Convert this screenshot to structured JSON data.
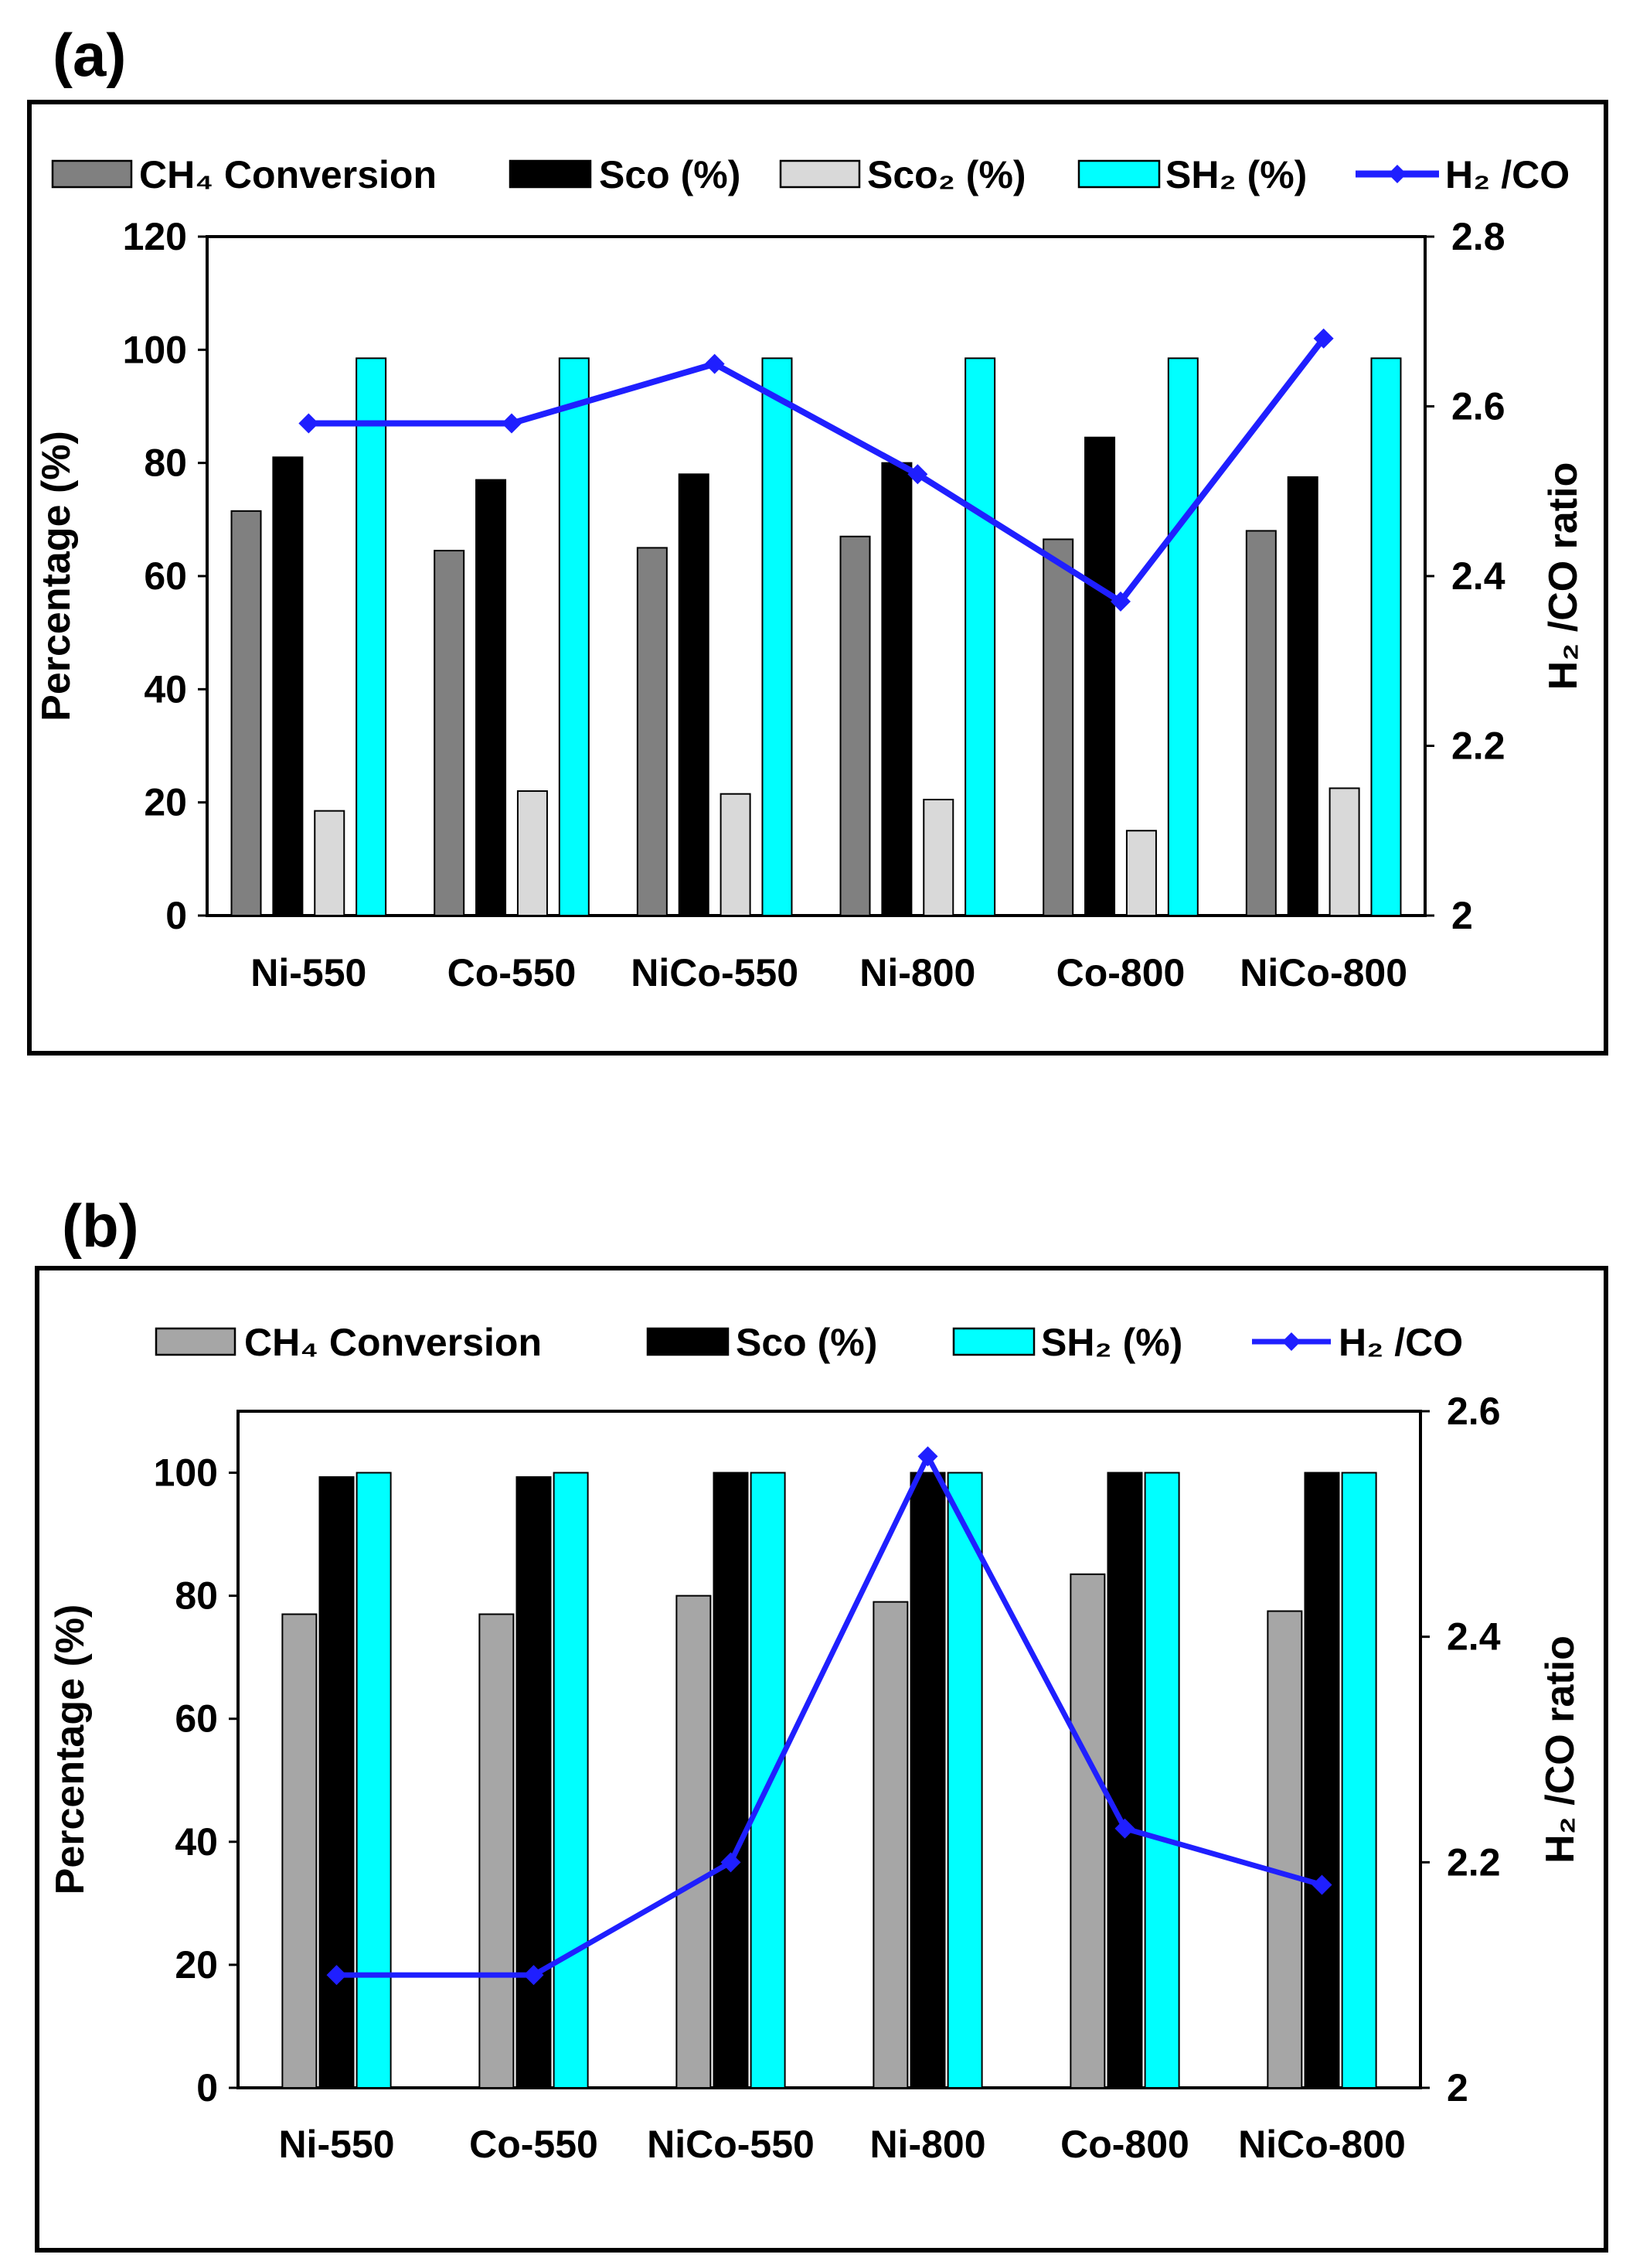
{
  "chart_data": [
    {
      "panel_label": "(a)",
      "type": "bar",
      "categories": [
        "Ni-550",
        "Co-550",
        "NiCo-550",
        "Ni-800",
        "Co-800",
        "NiCo-800"
      ],
      "ylabel": "Percentage (%)",
      "y2label": "H₂ /CO ratio",
      "ylim": [
        0,
        120
      ],
      "yticks": [
        0,
        20,
        40,
        60,
        80,
        100,
        120
      ],
      "y2lim": [
        2,
        2.8
      ],
      "y2ticks": [
        "2",
        "2.2",
        "2.4",
        "2.6",
        "2.8"
      ],
      "legend_position": "top",
      "series": [
        {
          "name": "CH₄ Conversion",
          "color": "#808080",
          "values": [
            71.5,
            64.5,
            65,
            67,
            66.5,
            68
          ]
        },
        {
          "name": "Sco (%)",
          "color": "#000000",
          "values": [
            81,
            77,
            78,
            80,
            84.5,
            77.5
          ]
        },
        {
          "name": "Sco₂ (%)",
          "color": "#d9d9d9",
          "values": [
            18.5,
            22,
            21.5,
            20.5,
            15,
            22.5
          ]
        },
        {
          "name": "SH₂ (%)",
          "color": "#00ffff",
          "values": [
            98.5,
            98.5,
            98.5,
            98.5,
            98.5,
            98.5
          ]
        }
      ],
      "line_series": {
        "name": "H₂ /CO",
        "color": "#1f1fff",
        "axis": "right",
        "values": [
          2.58,
          2.58,
          2.65,
          2.52,
          2.37,
          2.68
        ]
      }
    },
    {
      "panel_label": "(b)",
      "type": "bar",
      "categories": [
        "Ni-550",
        "Co-550",
        "NiCo-550",
        "Ni-800",
        "Co-800",
        "NiCo-800"
      ],
      "ylabel": "Percentage (%)",
      "y2label": "H₂ /CO ratio",
      "ylim": [
        0,
        110
      ],
      "yticks": [
        0,
        20,
        40,
        60,
        80,
        100
      ],
      "y2lim": [
        2,
        2.6
      ],
      "y2ticks": [
        "2",
        "2.2",
        "2.4",
        "2.6"
      ],
      "legend_position": "top",
      "series": [
        {
          "name": "CH₄ Conversion",
          "color": "#a6a6a6",
          "values": [
            77,
            77,
            80,
            79,
            83.5,
            77.5
          ]
        },
        {
          "name": "Sco (%)",
          "color": "#000000",
          "values": [
            99.3,
            99.3,
            100,
            100,
            100,
            100
          ]
        },
        {
          "name": "SH₂ (%)",
          "color": "#00ffff",
          "values": [
            100,
            100,
            100,
            100,
            100,
            100
          ]
        }
      ],
      "line_series": {
        "name": "H₂ /CO",
        "color": "#1f1fff",
        "axis": "right",
        "values": [
          2.1,
          2.1,
          2.2,
          2.56,
          2.23,
          2.18
        ]
      }
    }
  ]
}
